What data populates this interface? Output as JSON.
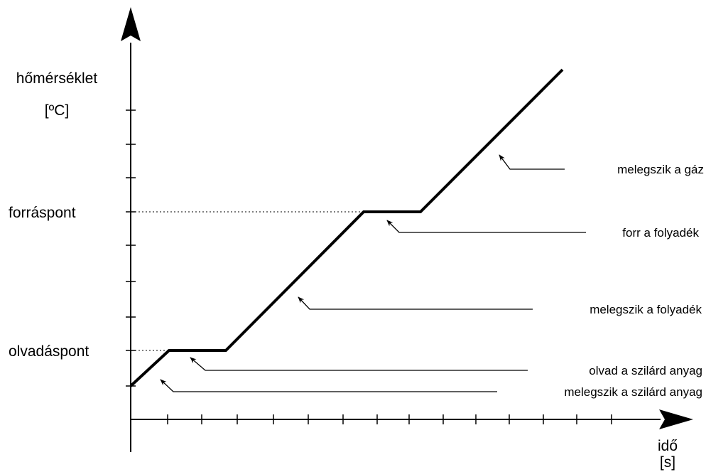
{
  "y_axis": {
    "label_line1": "hőmérséklet",
    "label_line2": "[ºC]"
  },
  "x_axis": {
    "label_line1": "idő",
    "label_line2": "[s]"
  },
  "levels": {
    "boiling": "forráspont",
    "melting": "olvadáspont"
  },
  "annotations": {
    "gas": "melegszik a gáz",
    "boiling": "forr a folyadék",
    "liquid": "melegszik a folyadék",
    "melting": "olvad a szilárd anyag",
    "solid": "melegszik a szilárd anyag"
  },
  "colors": {
    "line": "#000000",
    "background": "#ffffff"
  }
}
